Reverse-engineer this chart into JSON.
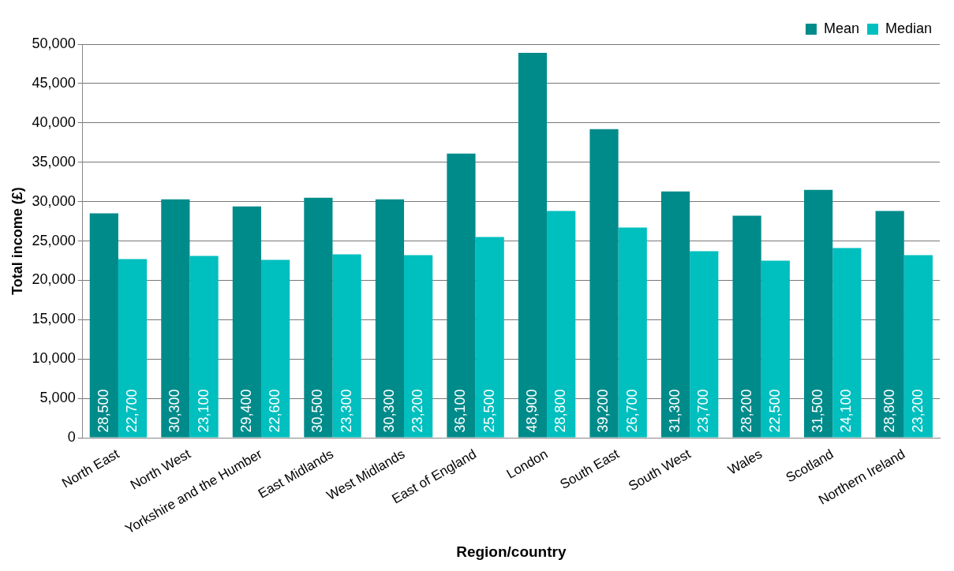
{
  "chart_data": {
    "type": "bar",
    "xlabel": "Region/country",
    "ylabel": "Total income (£)",
    "categories": [
      "North East",
      "North West",
      "Yorkshire and the Humber",
      "East Midlands",
      "West Midlands",
      "East of England",
      "London",
      "South East",
      "South West",
      "Wales",
      "Scotland",
      "Northern Ireland"
    ],
    "series": [
      {
        "name": "Mean",
        "color": "#008b8b",
        "values": [
          28500,
          30300,
          29400,
          30500,
          30300,
          36100,
          48900,
          39200,
          31300,
          28200,
          31500,
          28800
        ],
        "value_labels": [
          "28,500",
          "30,300",
          "29,400",
          "30,500",
          "30,300",
          "36,100",
          "48,900",
          "39,200",
          "31,300",
          "28,200",
          "31,500",
          "28,800"
        ]
      },
      {
        "name": "Median",
        "color": "#00bfbf",
        "values": [
          22700,
          23100,
          22600,
          23300,
          23200,
          25500,
          28800,
          26700,
          23700,
          22500,
          24100,
          23200
        ],
        "value_labels": [
          "22,700",
          "23,100",
          "22,600",
          "23,300",
          "23,200",
          "25,500",
          "28,800",
          "26,700",
          "23,700",
          "22,500",
          "24,100",
          "23,200"
        ]
      }
    ],
    "ylim": [
      0,
      50000
    ],
    "yticks": [
      {
        "value": 0,
        "label": "0"
      },
      {
        "value": 5000,
        "label": "5,000"
      },
      {
        "value": 10000,
        "label": "10,000"
      },
      {
        "value": 15000,
        "label": "15,000"
      },
      {
        "value": 20000,
        "label": "20,000"
      },
      {
        "value": 25000,
        "label": "25,000"
      },
      {
        "value": 30000,
        "label": "30,000"
      },
      {
        "value": 35000,
        "label": "35,000"
      },
      {
        "value": 40000,
        "label": "40,000"
      },
      {
        "value": 45000,
        "label": "45,000"
      },
      {
        "value": 50000,
        "label": "50,000"
      }
    ],
    "grid": "y",
    "legend": "top right"
  }
}
